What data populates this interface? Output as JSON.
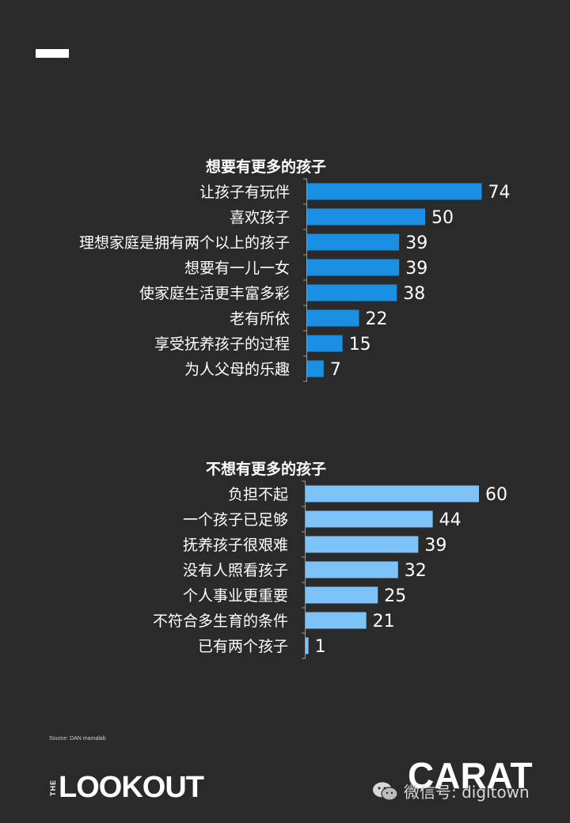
{
  "chart_data": [
    {
      "type": "bar",
      "orientation": "horizontal",
      "title": "想要有更多的孩子",
      "categories": [
        "让孩子有玩伴",
        "喜欢孩子",
        "理想家庭是拥有两个以上的孩子",
        "想要有一儿一女",
        "使家庭生活更丰富多彩",
        "老有所依",
        "享受抚养孩子的过程",
        "为人父母的乐趣"
      ],
      "values": [
        74,
        50,
        39,
        39,
        38,
        22,
        15,
        7
      ],
      "color": "#1a8fe3"
    },
    {
      "type": "bar",
      "orientation": "horizontal",
      "title": "不想有更多的孩子",
      "categories": [
        "负担不起",
        "一个孩子已足够",
        "抚养孩子很艰难",
        "没有人照看孩子",
        "个人事业更重要",
        "不符合多生育的条件",
        "已有两个孩子"
      ],
      "values": [
        60,
        44,
        39,
        32,
        25,
        21,
        1
      ],
      "color": "#7ec3f7"
    }
  ],
  "footer": {
    "source": "Source: DAN mamalab",
    "lookout_prefix": "THE",
    "lookout_word": "LOOKOUT",
    "carat": "CARAT",
    "wechat_text": "微信号: digitown"
  }
}
